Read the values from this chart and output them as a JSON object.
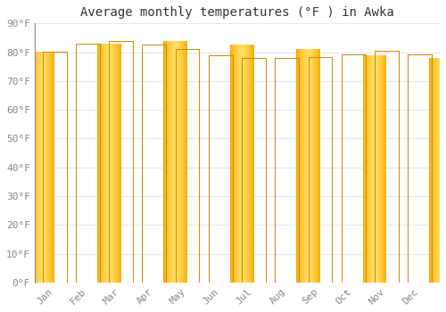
{
  "title": "Average monthly temperatures (°F ) in Awka",
  "months": [
    "Jan",
    "Feb",
    "Mar",
    "Apr",
    "May",
    "Jun",
    "Jul",
    "Aug",
    "Sep",
    "Oct",
    "Nov",
    "Dec"
  ],
  "values": [
    80.1,
    83.1,
    83.8,
    82.5,
    81.1,
    79.0,
    77.9,
    77.9,
    78.4,
    79.3,
    80.6,
    79.3
  ],
  "bar_color_center": "#FFD966",
  "bar_color_edge": "#F5A800",
  "background_color": "#ffffff",
  "plot_bg_color": "#ffffff",
  "ylim": [
    0,
    90
  ],
  "yticks": [
    0,
    10,
    20,
    30,
    40,
    50,
    60,
    70,
    80,
    90
  ],
  "ytick_labels": [
    "0°F",
    "10°F",
    "20°F",
    "30°F",
    "40°F",
    "50°F",
    "60°F",
    "70°F",
    "80°F",
    "90°F"
  ],
  "title_fontsize": 10,
  "tick_fontsize": 8,
  "font_family": "monospace",
  "grid_color": "#e8e8e8",
  "grid_linewidth": 0.8
}
